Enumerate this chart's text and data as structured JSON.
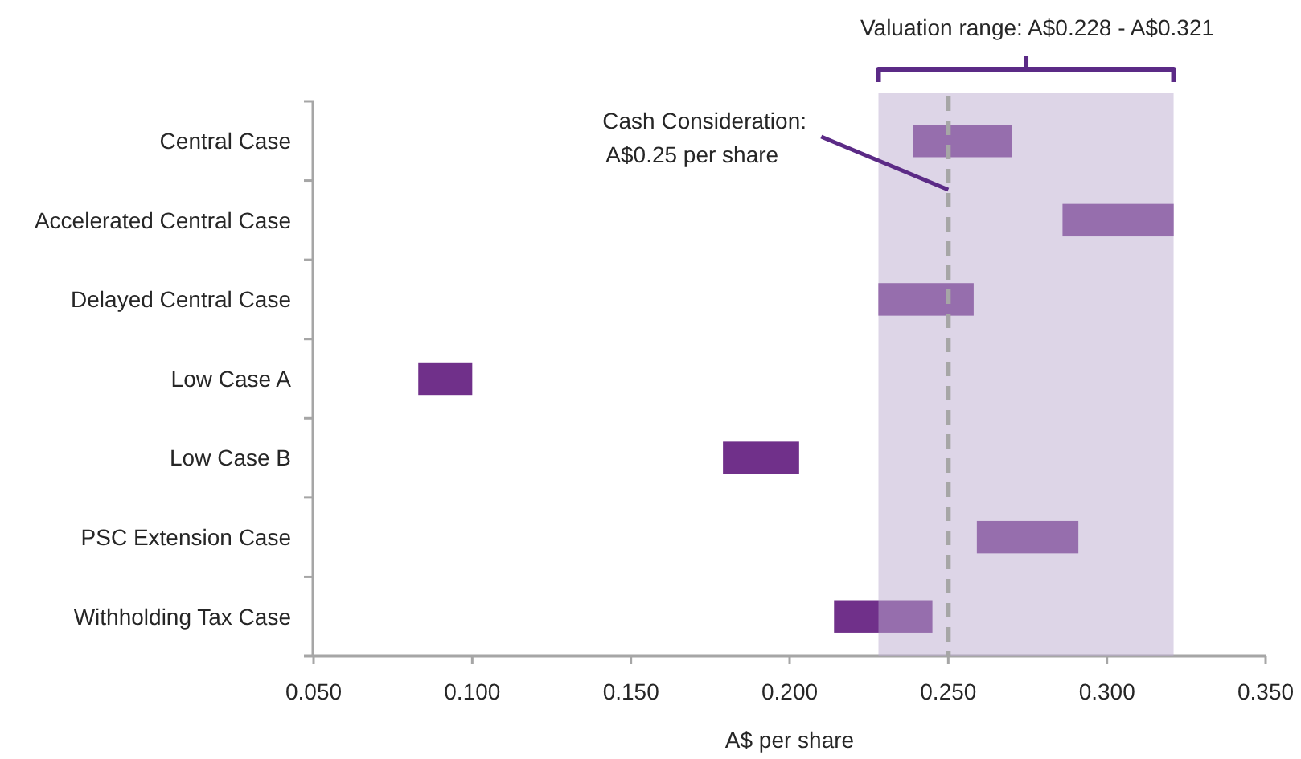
{
  "chart_data": {
    "type": "bar",
    "orientation": "horizontal",
    "categories": [
      "Central Case",
      "Accelerated Central Case",
      "Delayed Central Case",
      "Low Case A",
      "Low Case B",
      "PSC Extension Case",
      "Withholding Tax Case"
    ],
    "base": [
      0.239,
      0.286,
      0.228,
      0.083,
      0.179,
      0.259,
      0.214
    ],
    "values": [
      0.031,
      0.035,
      0.03,
      0.017,
      0.024,
      0.032,
      0.031
    ],
    "color": "#70308a",
    "xlim": [
      0.05,
      0.35
    ],
    "xticks": [
      {
        "value": 0.05,
        "label": "0.050"
      },
      {
        "value": 0.1,
        "label": "0.100"
      },
      {
        "value": 0.15,
        "label": "0.150"
      },
      {
        "value": 0.2,
        "label": "0.200"
      },
      {
        "value": 0.25,
        "label": "0.250"
      },
      {
        "value": 0.3,
        "label": "0.300"
      },
      {
        "value": 0.35,
        "label": "0.350"
      }
    ],
    "xlabel": "A$ per share",
    "ref_lines": [
      {
        "axis": "x",
        "value": 0.25,
        "label": "Cash Consideration:\nA$0.25 per share",
        "color": "#a6a6a6",
        "line_style": "dashed"
      }
    ],
    "bands": [
      {
        "axis": "x",
        "from": 0.228,
        "to": 0.321,
        "label": "Valuation range: A$0.228 - A$0.321",
        "color": "#ddd5e7"
      }
    ]
  }
}
